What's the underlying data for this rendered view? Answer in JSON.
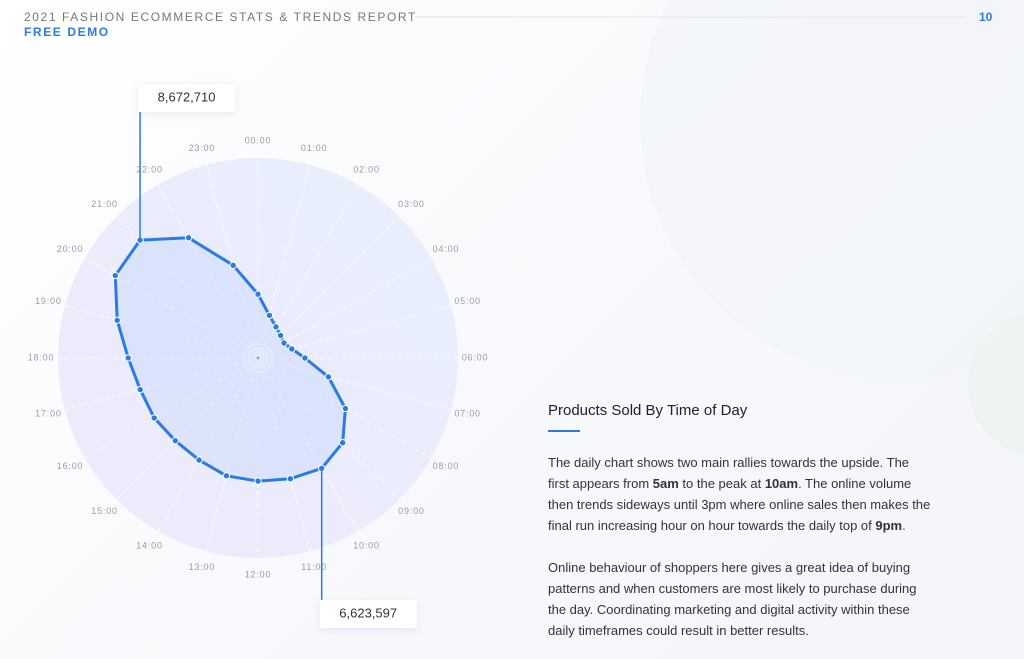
{
  "header": {
    "title": "2021 FASHION ECOMMERCE STATS & TRENDS REPORT",
    "subtitle": "FREE DEMO",
    "page_number": "10"
  },
  "chart_data": {
    "type": "radar",
    "categories": [
      "00:00",
      "01:00",
      "02:00",
      "03:00",
      "04:00",
      "05:00",
      "06:00",
      "07:00",
      "08:00",
      "09:00",
      "10:00",
      "11:00",
      "12:00",
      "13:00",
      "14:00",
      "15:00",
      "16:00",
      "17:00",
      "18:00",
      "19:00",
      "20:00",
      "21:00",
      "22:00",
      "23:00"
    ],
    "values": [
      3320000,
      2290000,
      1870000,
      1660000,
      1560000,
      1820000,
      2440000,
      3790000,
      5250000,
      6230000,
      6623597,
      6500000,
      6400000,
      6340000,
      6130000,
      6080000,
      6230000,
      6340000,
      6750000,
      7580000,
      8570000,
      8672710,
      7220000,
      4990000
    ],
    "value_labels": [
      null,
      null,
      null,
      null,
      null,
      null,
      null,
      null,
      null,
      null,
      "6,623,597",
      null,
      null,
      null,
      null,
      null,
      null,
      null,
      null,
      null,
      null,
      "8,672,710",
      null,
      null
    ],
    "ylim": [
      0,
      10400000
    ],
    "color": "#2a7be4"
  },
  "text": {
    "heading": "Products Sold By Time of Day",
    "paragraphs": [
      [
        {
          "text": "The daily chart shows two main rallies towards the upside. The first appears from "
        },
        {
          "text": "5am",
          "bold": true
        },
        {
          "text": " to the peak at "
        },
        {
          "text": "10am",
          "bold": true
        },
        {
          "text": ". The online volume then trends sideways until 3pm where online sales then makes the final run increasing hour on hour towards the daily top of "
        },
        {
          "text": "9pm",
          "bold": true
        },
        {
          "text": "."
        }
      ],
      [
        {
          "text": "Online behaviour of shoppers here gives a great idea of buying patterns and when customers are most likely to purchase during the day. Coordinating marketing and digital activity within these daily timeframes could result in better results."
        }
      ]
    ]
  }
}
